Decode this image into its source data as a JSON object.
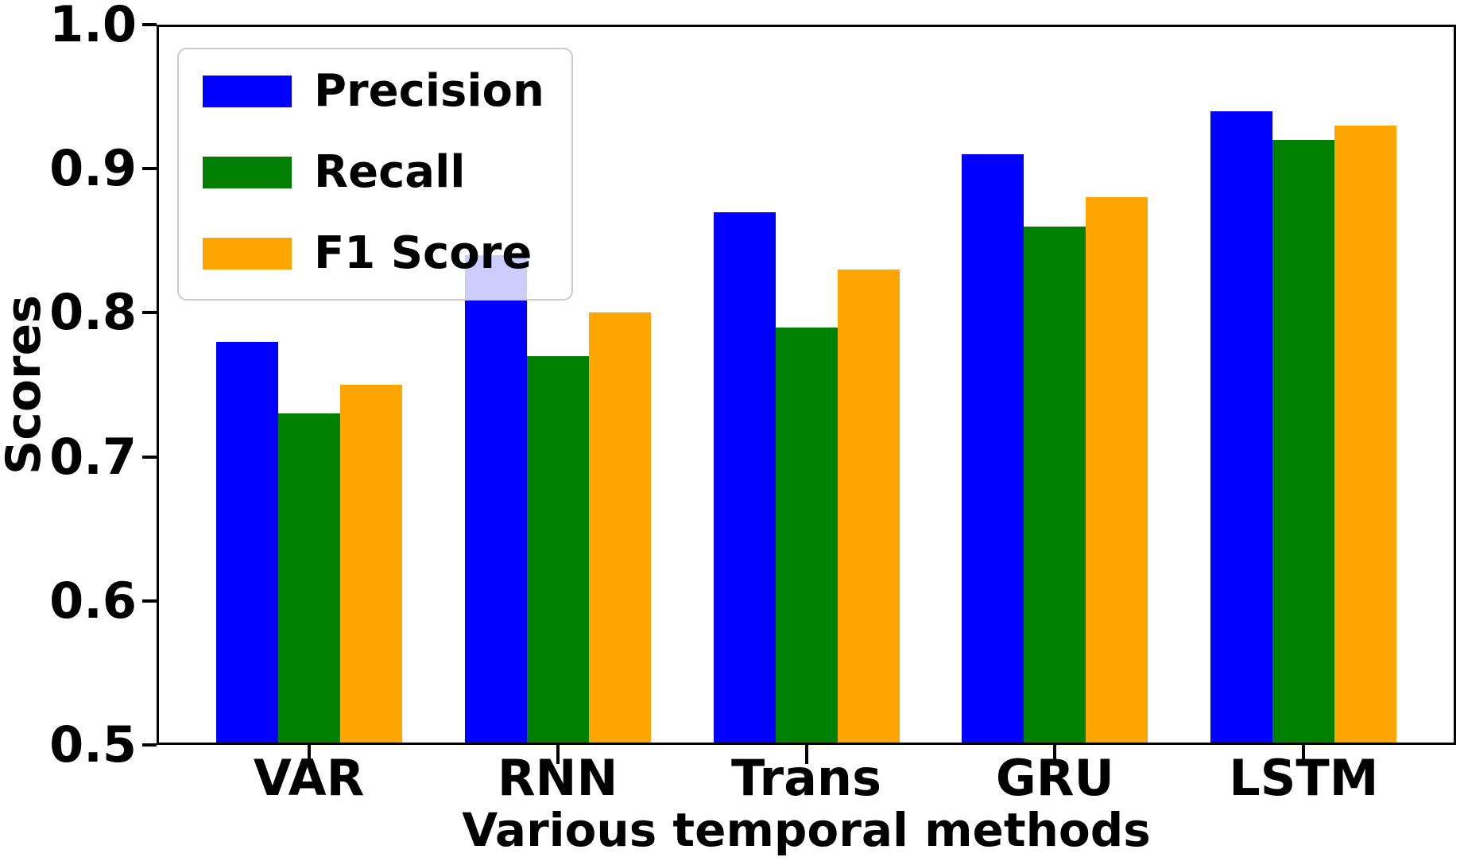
{
  "chart_data": {
    "type": "bar",
    "title": "",
    "categories": [
      "VAR",
      "RNN",
      "Trans",
      "GRU",
      "LSTM"
    ],
    "series": [
      {
        "name": "Precision",
        "color": "#0000ff",
        "values": [
          0.78,
          0.84,
          0.87,
          0.91,
          0.94
        ]
      },
      {
        "name": "Recall",
        "color": "#008000",
        "values": [
          0.73,
          0.77,
          0.79,
          0.86,
          0.92
        ]
      },
      {
        "name": "F1 Score",
        "color": "#ffa500",
        "values": [
          0.75,
          0.8,
          0.83,
          0.88,
          0.93
        ]
      }
    ],
    "xlabel": "Various temporal methods",
    "ylabel": "Scores",
    "ylim": [
      0.5,
      1.0
    ],
    "yticks": [
      "0.5",
      "0.6",
      "0.7",
      "0.8",
      "0.9",
      "1.0"
    ],
    "grid": false,
    "legend_position": "upper left",
    "axis_color": "#000000"
  }
}
